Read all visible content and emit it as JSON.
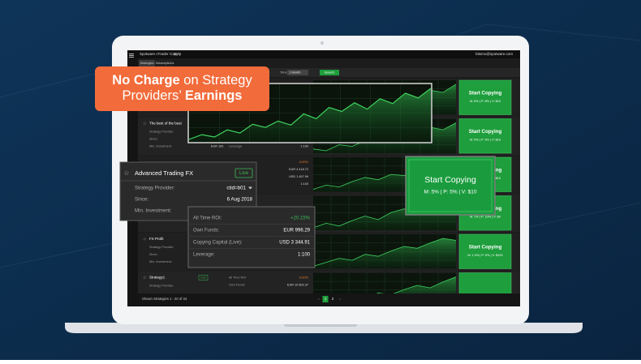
{
  "badge": {
    "bold1": "No Charge",
    "text1": " on Strategy",
    "text2": "Providers’ ",
    "bold2": "Earnings"
  },
  "app": {
    "brand": "Spotware cTrader Copy",
    "help": "Help",
    "user": "bitsmo@spotware.com",
    "tabs": [
      "Strategies",
      "Subscriptions"
    ],
    "time_label": "Time",
    "period": "1 Month",
    "search": "Search"
  },
  "overlay_chart": [
    12,
    18,
    15,
    24,
    20,
    31,
    27,
    35,
    30,
    44,
    38,
    52,
    47,
    58,
    50,
    63,
    57,
    70,
    64,
    76
  ],
  "rows": [
    {
      "chart": [
        20,
        25,
        22,
        30,
        28,
        36,
        33,
        42,
        40,
        50,
        47,
        58
      ],
      "button": "Start Copying",
      "terms": "M: 8% | P: 8% | V: $10"
    },
    {
      "name": "The best of the best",
      "labels": [
        "Strategy Provider:",
        "Since:",
        "Min. Investment:"
      ],
      "min_value": "EUR 100",
      "leverage_label": "Leverage:",
      "leverage": "1:100",
      "chart": [
        30,
        28,
        35,
        33,
        40,
        38,
        45,
        42,
        50,
        55,
        52,
        60
      ],
      "button": "Start Copying",
      "terms": "M: 5% | P: 5% | V: $19"
    },
    {
      "stats": [
        {
          "value": "-6.60%"
        },
        {
          "value": "EUR 4 418.72"
        },
        {
          "value": "USD 1 457.99"
        },
        {
          "value": "1:100"
        }
      ],
      "chart": [
        15,
        22,
        19,
        28,
        35,
        31,
        40,
        38,
        47,
        44,
        55,
        62
      ],
      "button": "Start Copying",
      "terms": "M: 5% | P: 5% | V: $10"
    },
    {
      "chart": [
        25,
        30,
        27,
        33,
        38,
        34,
        42,
        46,
        43,
        50,
        56,
        53
      ],
      "button": "Start Copying",
      "terms": "M: 1% | P: 10% | V: $0"
    },
    {
      "name": "FX Profit",
      "labels": [
        "Strategy Provider:",
        "Since:",
        "Min. Investment:"
      ],
      "min_value": "EUR 100",
      "leverage_label": "Leverage:",
      "leverage": "1:100",
      "chart": [
        18,
        24,
        30,
        27,
        36,
        33,
        41,
        48,
        45,
        53,
        60,
        57
      ],
      "button": "Start Copying",
      "terms": "M: 1.0% | P: 5% | V: $100"
    },
    {
      "name": "Strategy1",
      "status": "Live",
      "labels": [
        "Strategy Provider:"
      ],
      "stats": [
        {
          "label": "All Time ROI",
          "value": "-6.60%"
        },
        {
          "label": "Own Funds:",
          "value": "EUR 10 802.37"
        }
      ],
      "chart": [
        22,
        26,
        24,
        31,
        29,
        36,
        34,
        40,
        45,
        42,
        49,
        55
      ]
    }
  ],
  "card": {
    "title": "Advanced Trading FX",
    "status": "Live",
    "labels": [
      "Strategy Provider:",
      "Since:",
      "Min. Investment:"
    ],
    "provider": "ctid=b01",
    "since": "6 Aug 2018"
  },
  "stats_card": [
    {
      "label": "All Time ROI:",
      "value": "+20.15%"
    },
    {
      "label": "Own Funds:",
      "value": "EUR 996.29"
    },
    {
      "label": "Copying Capital (Live):",
      "value": "USD 3 344.91"
    },
    {
      "label": "Leverage:",
      "value": "1:100"
    }
  ],
  "big_button": {
    "label": "Start Copying",
    "terms": "M: 5% | P: 5% | V: $10"
  },
  "footer": {
    "shown": "Shown Strategies 1 - 20 of 34",
    "pages": [
      "1",
      "2"
    ]
  }
}
